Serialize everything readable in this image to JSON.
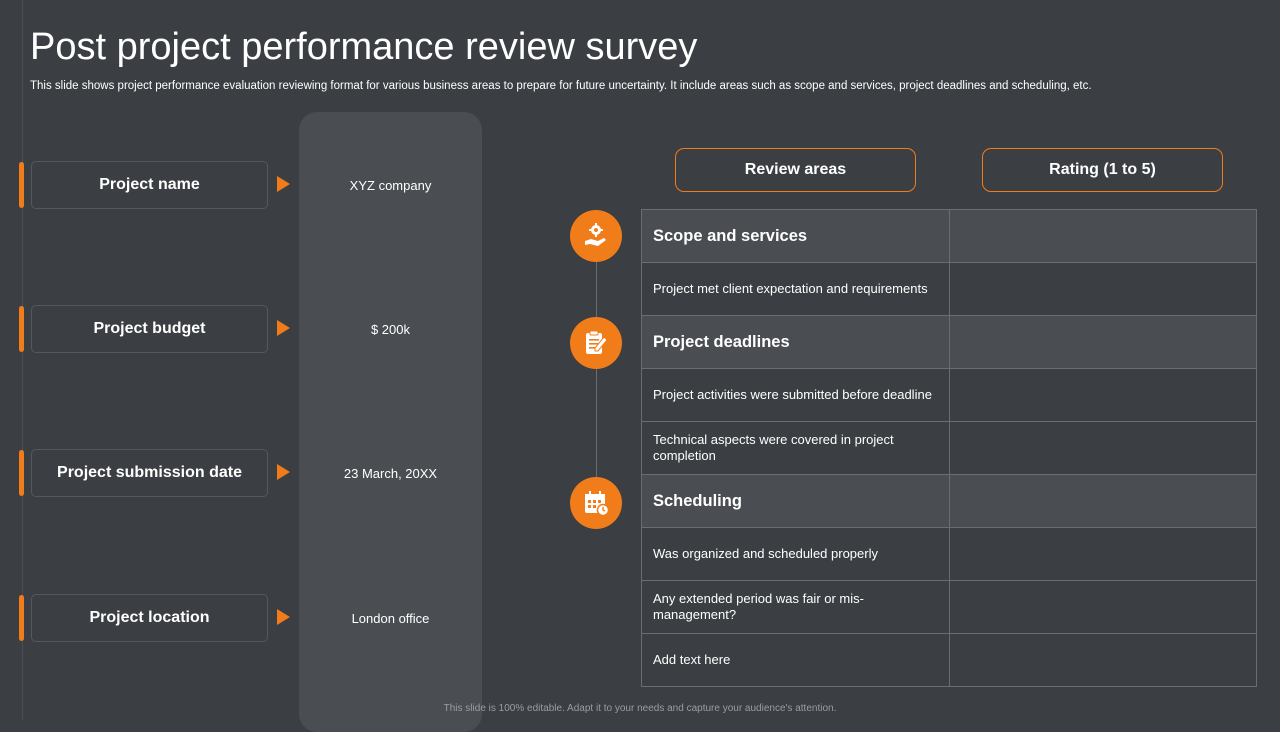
{
  "title": "Post project performance review survey",
  "subtitle": "This slide shows project performance evaluation reviewing format for various business areas to prepare for future uncertainty. It include areas such as scope and services, project deadlines and scheduling, etc.",
  "fields": [
    {
      "label": "Project name",
      "value": "XYZ company"
    },
    {
      "label": "Project budget",
      "value": "$ 200k"
    },
    {
      "label": "Project submission date",
      "value": "23 March, 20XX"
    },
    {
      "label": "Project location",
      "value": "London office"
    }
  ],
  "headers": {
    "review_areas": "Review areas",
    "rating": "Rating (1 to 5)"
  },
  "rows": [
    {
      "text": "Scope and services",
      "rating": ""
    },
    {
      "text": "Project met client expectation and requirements",
      "rating": ""
    },
    {
      "text": "Project deadlines",
      "rating": ""
    },
    {
      "text": "Project activities were submitted before deadline",
      "rating": ""
    },
    {
      "text": "Technical aspects were covered in project completion",
      "rating": ""
    },
    {
      "text": "Scheduling",
      "rating": ""
    },
    {
      "text": "Was organized and scheduled properly",
      "rating": ""
    },
    {
      "text": "Any extended period was fair or mis-management?",
      "rating": ""
    },
    {
      "text": "Add text here",
      "rating": ""
    }
  ],
  "icons": [
    "gear-hand-icon",
    "clipboard-pen-icon",
    "calendar-clock-icon"
  ],
  "footer": "This slide is 100% editable. Adapt it to your needs and capture your audience's attention.",
  "colors": {
    "accent": "#f07c1a",
    "background": "#3b3e42",
    "panel": "#4a4d51",
    "border": "#6a6d72"
  }
}
